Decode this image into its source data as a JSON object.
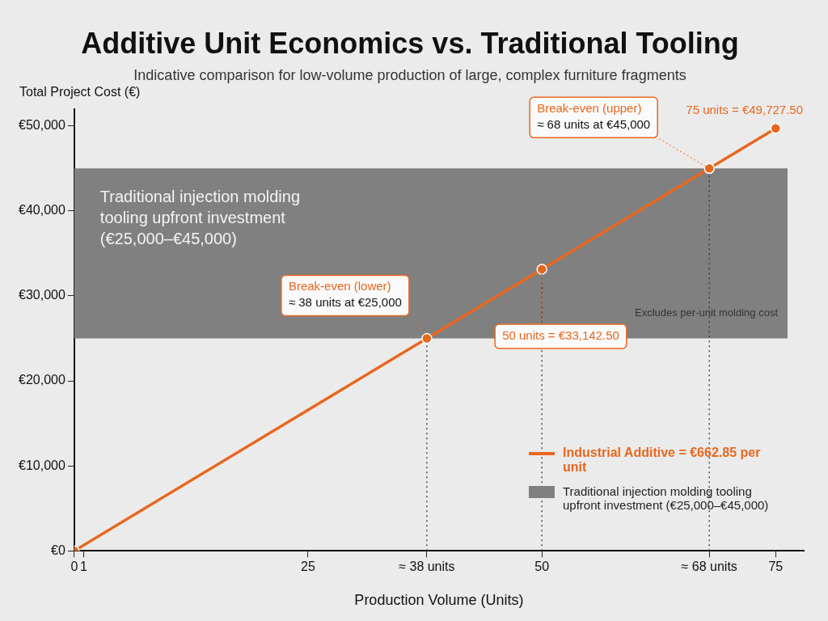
{
  "chart_data": {
    "type": "line",
    "title": "Additive Unit Economics vs. Traditional Tooling",
    "subtitle": "Indicative comparison for low-volume production of large, complex furniture fragments",
    "xlabel": "Production Volume (Units)",
    "ylabel": "Total Project Cost (€)",
    "series": [
      {
        "name": "Industrial Additive = €662.85 per unit",
        "color": "#e8671e",
        "x": [
          0,
          37.7,
          50,
          67.9,
          75
        ],
        "values": [
          0,
          25000,
          33142.5,
          45000,
          49727.5
        ]
      }
    ],
    "xlim": [
      0,
      78
    ],
    "xticks": [
      0,
      1,
      25,
      {
        "value": 37.7,
        "label": "≈ 38 units"
      },
      50,
      {
        "value": 67.9,
        "label": "≈ 68 units"
      },
      75
    ],
    "ylim": [
      0,
      52000
    ],
    "yticks": [
      {
        "value": 0,
        "label": "€0"
      },
      {
        "value": 10000,
        "label": "€10,000"
      },
      {
        "value": 20000,
        "label": "€20,000"
      },
      {
        "value": 30000,
        "label": "€30,000"
      },
      {
        "value": 40000,
        "label": "€40,000"
      },
      {
        "value": 50000,
        "label": "€50,000"
      }
    ],
    "bands": [
      {
        "axis": "y",
        "from": 25000,
        "to": 45000,
        "label": "Traditional injection molding tooling upfront investment (€25,000–€45,000)",
        "color": "#808080"
      }
    ],
    "ref_lines": [
      {
        "axis": "x",
        "value": 37.7,
        "line_style": "dotted",
        "color": "#333333"
      },
      {
        "axis": "x",
        "value": 50,
        "line_style": "dotted",
        "color": "#333333"
      },
      {
        "axis": "x",
        "value": 67.9,
        "line_style": "dotted",
        "color": "#333333"
      }
    ],
    "annotations": [
      {
        "text": "Break-even (lower)\n≈ 38 units at €25,000",
        "x": 37.7,
        "y": 25000
      },
      {
        "text": "Break-even (upper)\n≈ 68 units at €45,000",
        "x": 67.9,
        "y": 45000
      },
      {
        "text": "50 units = €33,142.50",
        "x": 50,
        "y": 33142.5
      },
      {
        "text": "75 units = €49,727.50",
        "x": 75,
        "y": 49727.5
      },
      "Excludes per-unit molding cost"
    ],
    "marker": "circle",
    "line_style": "solid",
    "legend": "bottom right"
  }
}
